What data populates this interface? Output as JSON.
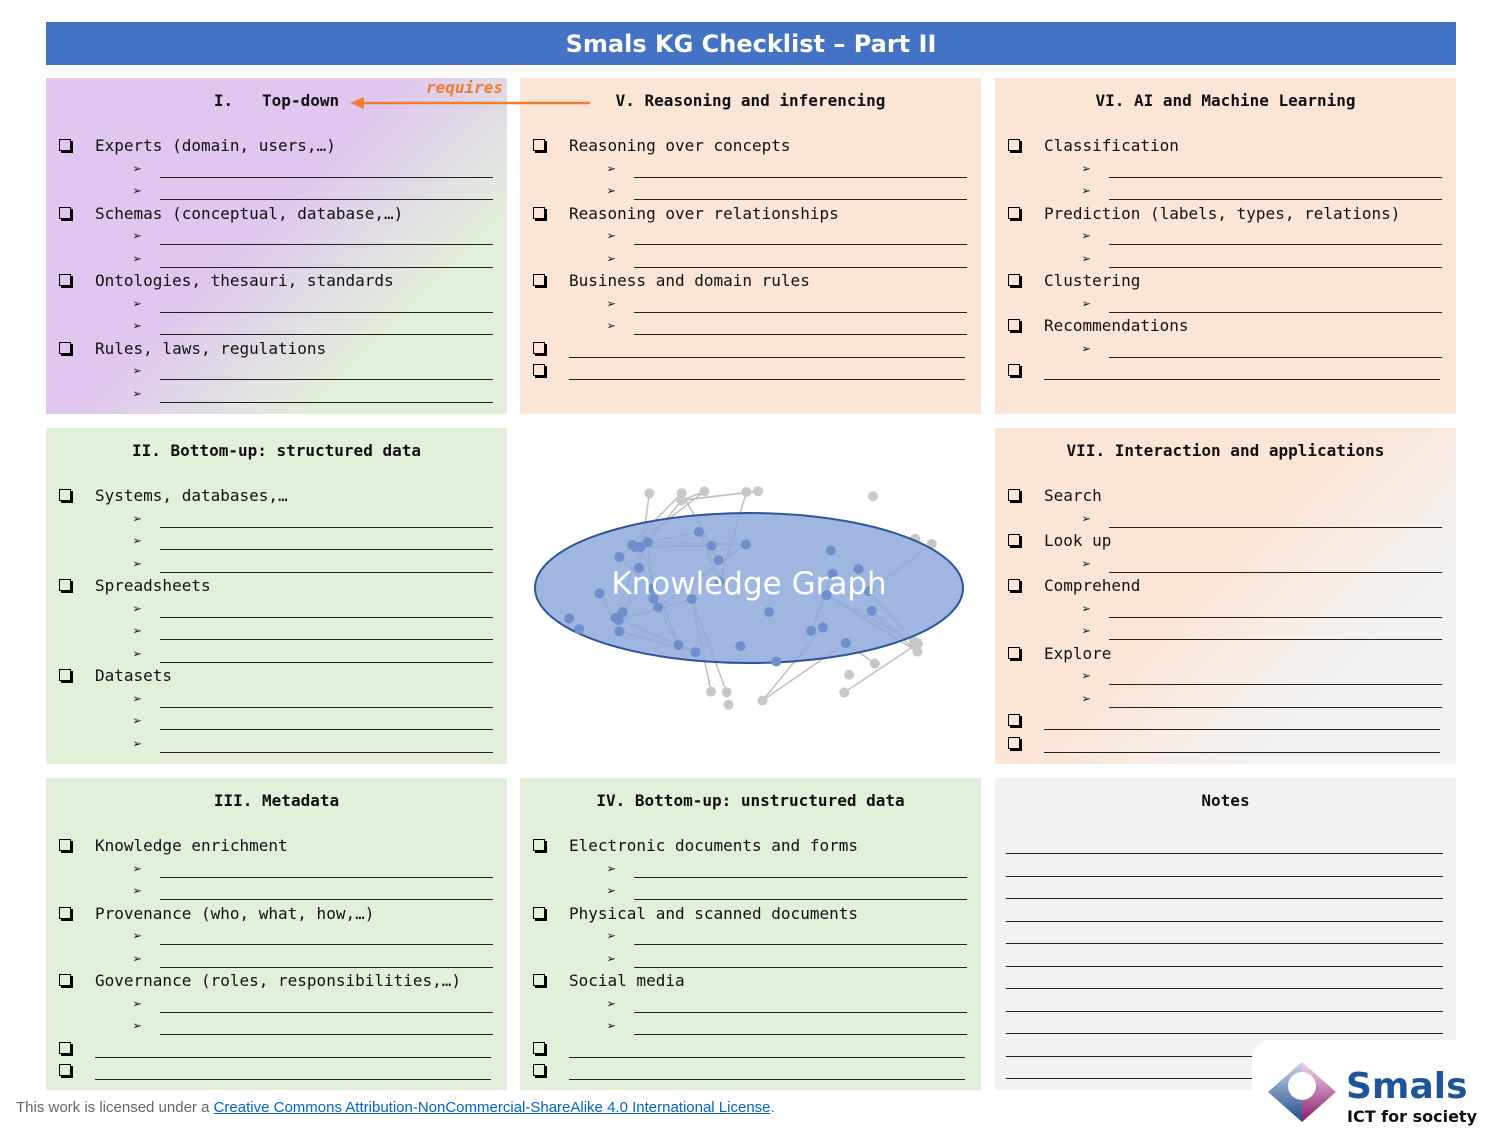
{
  "header": {
    "title": "Smals KG Checklist – Part II"
  },
  "colors": {
    "header": "#4472c4",
    "orange_panel": "#fbe5d6",
    "green_panel": "#e2efda",
    "purple_panel": "#e0c8ee",
    "notes_panel": "#f2f2f2",
    "arrow": "#ed7d31",
    "kg_fill": "#8eaadb",
    "kg_stroke": "#2f5597"
  },
  "requires_label": "requires",
  "panels": [
    {
      "id": "top-down",
      "title": "I.   Top-down",
      "bg": "linear-gradient(135deg,#dfc7ef 0%,#dfc7ef 45%,#e2efda 75%)",
      "rows": [
        {
          "t": "item",
          "text": "Experts (domain, users,…)"
        },
        {
          "t": "sub"
        },
        {
          "t": "sub"
        },
        {
          "t": "item",
          "text": "Schemas (conceptual, database,…)"
        },
        {
          "t": "sub"
        },
        {
          "t": "sub"
        },
        {
          "t": "item",
          "text": "Ontologies, thesauri, standards"
        },
        {
          "t": "sub"
        },
        {
          "t": "sub"
        },
        {
          "t": "item",
          "text": "Rules, laws, regulations"
        },
        {
          "t": "sub"
        },
        {
          "t": "sub"
        }
      ]
    },
    {
      "id": "reasoning",
      "title": "V. Reasoning and inferencing",
      "bg": "#fbe5d6",
      "rows": [
        {
          "t": "item",
          "text": "Reasoning over concepts"
        },
        {
          "t": "sub"
        },
        {
          "t": "sub"
        },
        {
          "t": "item",
          "text": "Reasoning over relationships"
        },
        {
          "t": "sub"
        },
        {
          "t": "sub"
        },
        {
          "t": "item",
          "text": "Business and domain rules"
        },
        {
          "t": "sub"
        },
        {
          "t": "sub"
        },
        {
          "t": "blank"
        },
        {
          "t": "blank"
        }
      ]
    },
    {
      "id": "ai-ml",
      "title": "VI. AI and Machine Learning",
      "bg": "#fbe5d6",
      "rows": [
        {
          "t": "item",
          "text": "Classification"
        },
        {
          "t": "sub"
        },
        {
          "t": "sub"
        },
        {
          "t": "item",
          "text": "Prediction (labels, types, relations)"
        },
        {
          "t": "sub"
        },
        {
          "t": "sub"
        },
        {
          "t": "item",
          "text": "Clustering"
        },
        {
          "t": "sub"
        },
        {
          "t": "item",
          "text": "Recommendations"
        },
        {
          "t": "sub"
        },
        {
          "t": "blank"
        }
      ]
    },
    {
      "id": "structured",
      "title": "II. Bottom-up: structured data",
      "bg": "#e2efda",
      "rows": [
        {
          "t": "item",
          "text": "Systems, databases,…"
        },
        {
          "t": "sub"
        },
        {
          "t": "sub"
        },
        {
          "t": "sub"
        },
        {
          "t": "item",
          "text": "Spreadsheets"
        },
        {
          "t": "sub"
        },
        {
          "t": "sub"
        },
        {
          "t": "sub"
        },
        {
          "t": "item",
          "text": "Datasets"
        },
        {
          "t": "sub"
        },
        {
          "t": "sub"
        },
        {
          "t": "sub"
        }
      ]
    },
    {
      "id": "interaction",
      "title": "VII. Interaction and applications",
      "bg": "linear-gradient(135deg,#fbe5d6 0%,#fbe5d6 45%,#f2f2f2 75%)",
      "rows": [
        {
          "t": "item",
          "text": "Search"
        },
        {
          "t": "sub"
        },
        {
          "t": "item",
          "text": "Look up"
        },
        {
          "t": "sub"
        },
        {
          "t": "item",
          "text": "Comprehend"
        },
        {
          "t": "sub"
        },
        {
          "t": "sub"
        },
        {
          "t": "item",
          "text": "Explore"
        },
        {
          "t": "sub"
        },
        {
          "t": "sub"
        },
        {
          "t": "blank"
        },
        {
          "t": "blank"
        }
      ]
    },
    {
      "id": "metadata",
      "title": "III. Metadata",
      "bg": "#e2efda",
      "rows": [
        {
          "t": "item",
          "text": "Knowledge enrichment"
        },
        {
          "t": "sub"
        },
        {
          "t": "sub"
        },
        {
          "t": "item",
          "text": "Provenance (who, what, how,…)"
        },
        {
          "t": "sub"
        },
        {
          "t": "sub"
        },
        {
          "t": "item",
          "text": "Governance (roles, responsibilities,…)"
        },
        {
          "t": "sub"
        },
        {
          "t": "sub"
        },
        {
          "t": "blank"
        },
        {
          "t": "blank"
        }
      ]
    },
    {
      "id": "unstructured",
      "title": "IV. Bottom-up: unstructured data",
      "bg": "#e2efda",
      "rows": [
        {
          "t": "item",
          "text": "Electronic documents and forms"
        },
        {
          "t": "sub"
        },
        {
          "t": "sub"
        },
        {
          "t": "item",
          "text": "Physical and scanned documents"
        },
        {
          "t": "sub"
        },
        {
          "t": "sub"
        },
        {
          "t": "item",
          "text": "Social media"
        },
        {
          "t": "sub"
        },
        {
          "t": "sub"
        },
        {
          "t": "blank"
        },
        {
          "t": "blank"
        }
      ]
    }
  ],
  "notes": {
    "title": "Notes",
    "line_count": 11
  },
  "center": {
    "label": "Knowledge Graph"
  },
  "footer": {
    "prefix": "This work is licensed under a ",
    "link": "Creative Commons Attribution-NonCommercial-ShareAlike 4.0 International License",
    "suffix": "."
  },
  "logo": {
    "name": "Smals",
    "tagline": "ICT for society"
  }
}
